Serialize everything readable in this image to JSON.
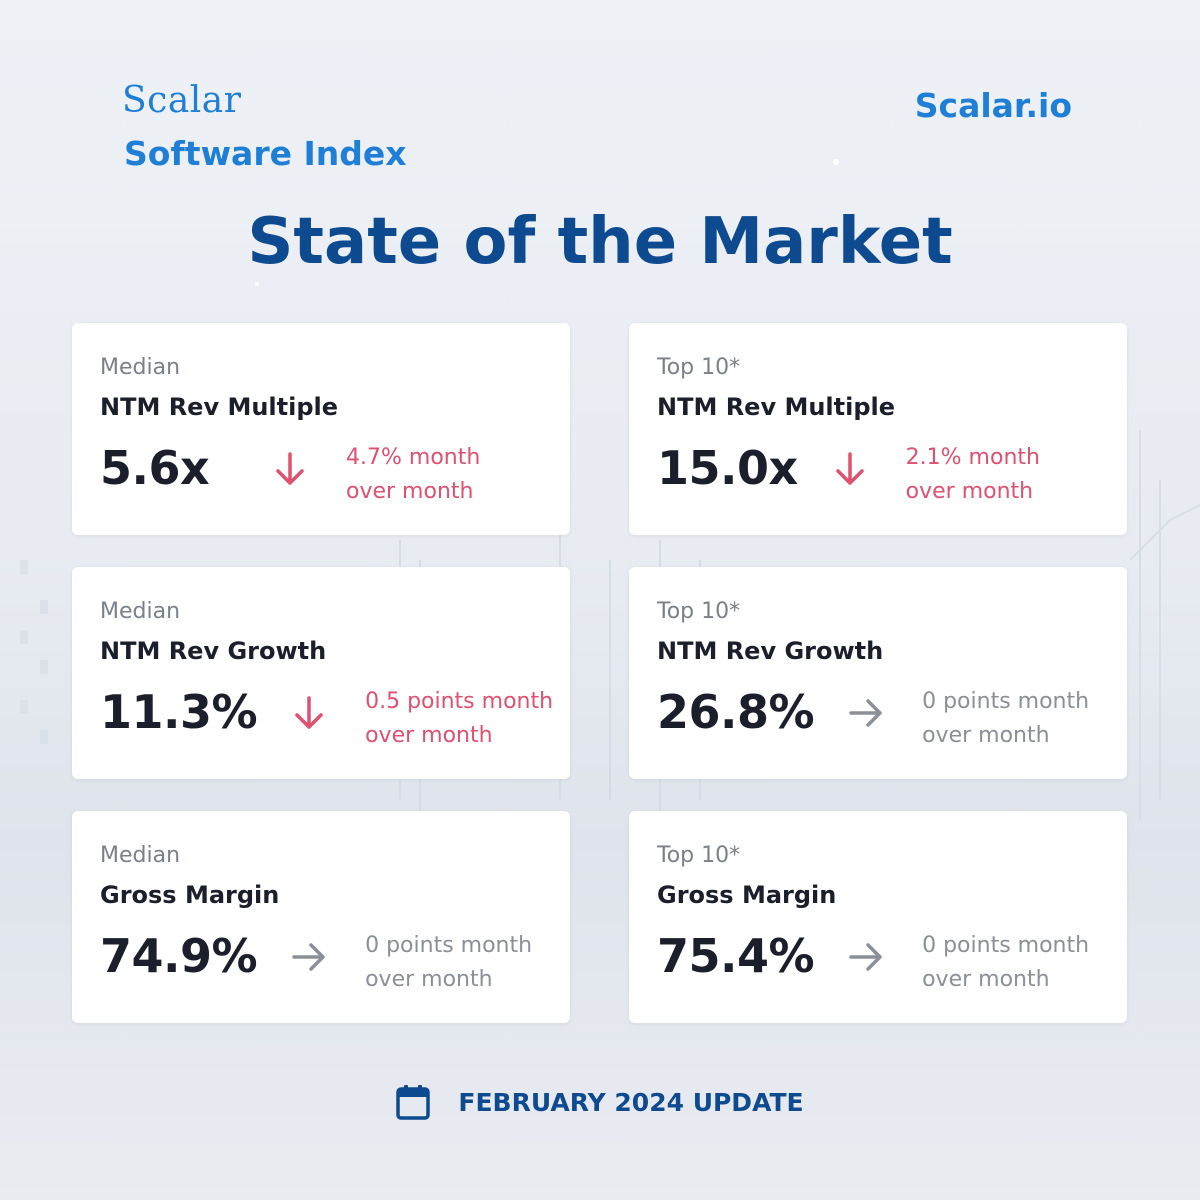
{
  "header": {
    "brand_name": "Scalar",
    "brand_subtitle": "Software Index",
    "site": "Scalar.io",
    "title": "State of the Market"
  },
  "cards": [
    {
      "kicker": "Median",
      "metric": "NTM Rev Multiple",
      "value": "5.6x",
      "trend": "down",
      "change_line1": "4.7% month",
      "change_line2": "over month"
    },
    {
      "kicker": "Top 10*",
      "metric": "NTM Rev Multiple",
      "value": "15.0x",
      "trend": "down",
      "change_line1": "2.1% month",
      "change_line2": "over month"
    },
    {
      "kicker": "Median",
      "metric": "NTM Rev Growth",
      "value": "11.3%",
      "trend": "down",
      "change_line1": "0.5 points month",
      "change_line2": "over month"
    },
    {
      "kicker": "Top 10*",
      "metric": "NTM Rev Growth",
      "value": "26.8%",
      "trend": "flat",
      "change_line1": "0 points month",
      "change_line2": "over month"
    },
    {
      "kicker": "Median",
      "metric": "Gross Margin",
      "value": "74.9%",
      "trend": "flat",
      "change_line1": "0 points month",
      "change_line2": "over month"
    },
    {
      "kicker": "Top 10*",
      "metric": "Gross Margin",
      "value": "75.4%",
      "trend": "flat",
      "change_line1": "0 points month",
      "change_line2": "over month"
    }
  ],
  "footer": {
    "icon": "calendar-icon",
    "label": "FEBRUARY 2024 UPDATE"
  },
  "colors": {
    "brand": "#1f7fd6",
    "title": "#0d4a8f",
    "down": "#e0506f",
    "flat": "#8a8f98"
  }
}
